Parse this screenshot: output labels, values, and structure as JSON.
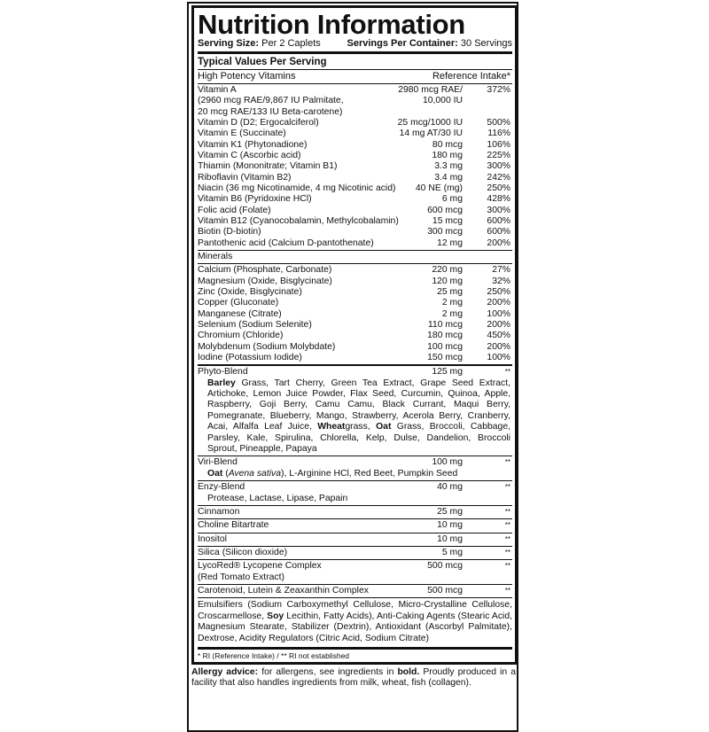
{
  "title": "Nutrition Information",
  "serving": {
    "size_label": "Serving Size:",
    "size_value": "Per 2 Caplets",
    "per_container_label": "Servings Per Container:",
    "per_container_value": "30 Servings"
  },
  "typical_values": "Typical Values Per Serving",
  "vitamins_header": {
    "label": "High Potency Vitamins",
    "ri": "Reference Intake*"
  },
  "vitamins": [
    {
      "name": "Vitamin A",
      "amount": "2980 mcg RAE/",
      "ri": "372%"
    },
    {
      "name": "(2960 mcg RAE/9,867 IU Palmitate,",
      "amount": "10,000 IU",
      "ri": ""
    },
    {
      "name": "20 mcg RAE/133 IU Beta-carotene)",
      "amount": "",
      "ri": ""
    },
    {
      "name": "Vitamin D (D2; Ergocalciferol)",
      "amount": "25 mcg/1000 IU",
      "ri": "500%"
    },
    {
      "name": "Vitamin E (Succinate)",
      "amount": "14 mg AT/30 IU",
      "ri": "116%"
    },
    {
      "name": "Vitamin K1 (Phytonadione)",
      "amount": "80 mcg",
      "ri": "106%"
    },
    {
      "name": "Vitamin C (Ascorbic acid)",
      "amount": "180 mg",
      "ri": "225%"
    },
    {
      "name": "Thiamin (Mononitrate; Vitamin B1)",
      "amount": "3.3 mg",
      "ri": "300%"
    },
    {
      "name": "Riboflavin (Vitamin B2)",
      "amount": "3.4 mg",
      "ri": "242%"
    },
    {
      "name": "Niacin (36 mg Nicotinamide, 4 mg Nicotinic acid)",
      "amount": "40 NE (mg)",
      "ri": "250%"
    },
    {
      "name": "Vitamin B6 (Pyridoxine HCl)",
      "amount": "6 mg",
      "ri": "428%"
    },
    {
      "name": "Folic acid (Folate)",
      "amount": "600 mcg",
      "ri": "300%"
    },
    {
      "name": "Vitamin B12 (Cyanocobalamin, Methylcobalamin)",
      "amount": "15 mcg",
      "ri": "600%"
    },
    {
      "name": "Biotin (D-biotin)",
      "amount": "300 mcg",
      "ri": "600%"
    },
    {
      "name": "Pantothenic acid (Calcium D-pantothenate)",
      "amount": "12 mg",
      "ri": "200%"
    }
  ],
  "minerals_header": "Minerals",
  "minerals": [
    {
      "name": "Calcium (Phosphate, Carbonate)",
      "amount": "220 mg",
      "ri": "27%"
    },
    {
      "name": "Magnesium (Oxide, Bisglycinate)",
      "amount": "120 mg",
      "ri": "32%"
    },
    {
      "name": "Zinc (Oxide, Bisglycinate)",
      "amount": "25 mg",
      "ri": "250%"
    },
    {
      "name": "Copper (Gluconate)",
      "amount": "2 mg",
      "ri": "200%"
    },
    {
      "name": "Manganese (Citrate)",
      "amount": "2 mg",
      "ri": "100%"
    },
    {
      "name": "Selenium (Sodium Selenite)",
      "amount": "110 mcg",
      "ri": "200%"
    },
    {
      "name": "Chromium (Chloride)",
      "amount": "180 mcg",
      "ri": "450%"
    },
    {
      "name": "Molybdenum (Sodium Molybdate)",
      "amount": "100 mcg",
      "ri": "200%"
    },
    {
      "name": "Iodine (Potassium Iodide)",
      "amount": "150 mcg",
      "ri": "100%"
    }
  ],
  "blends": [
    {
      "name": "Phyto-Blend",
      "amount": "125 mg",
      "ri": "**",
      "ingredients": [
        {
          "text": "Barley",
          "style": "b"
        },
        {
          "text": " Grass, Tart Cherry, Green Tea Extract, Grape Seed Extract, Artichoke, Lemon Juice Powder, Flax Seed, Curcumin, Quinoa, Apple, Raspberry, Goji Berry, Camu Camu, Black Currant, Maqui Berry, Pomegranate, Blueberry, Mango, Strawberry, Acerola Berry, Cranberry, Acai, Alfalfa Leaf Juice, ",
          "style": ""
        },
        {
          "text": "Wheat",
          "style": "b"
        },
        {
          "text": "grass, ",
          "style": ""
        },
        {
          "text": "Oat",
          "style": "b"
        },
        {
          "text": " Grass, Broccoli, Cabbage, Parsley, Kale, Spirulina, Chlorella, Kelp, Dulse, Dandelion, Broccoli Sprout, Pineapple, Papaya",
          "style": ""
        }
      ]
    },
    {
      "name": "Viri-Blend",
      "amount": "100 mg",
      "ri": "**",
      "ingredients": [
        {
          "text": "Oat",
          "style": "b"
        },
        {
          "text": " (",
          "style": ""
        },
        {
          "text": "Avena sativa",
          "style": "i"
        },
        {
          "text": "), L-Arginine HCl, Red Beet, Pumpkin Seed",
          "style": ""
        }
      ]
    },
    {
      "name": "Enzy-Blend",
      "amount": "40 mg",
      "ri": "**",
      "ingredients": [
        {
          "text": "Protease, Lactase, Lipase, Papain",
          "style": ""
        }
      ]
    }
  ],
  "others": [
    {
      "name": "Cinnamon",
      "amount": "25 mg",
      "ri": "**"
    },
    {
      "name": "Choline Bitartrate",
      "amount": "10 mg",
      "ri": "**"
    },
    {
      "name": "Inositol",
      "amount": "10 mg",
      "ri": "**"
    },
    {
      "name": "Silica (Silicon dioxide)",
      "amount": "5 mg",
      "ri": "**"
    },
    {
      "name": "LycoRed® Lycopene Complex",
      "name2": "(Red Tomato Extract)",
      "amount": "500 mcg",
      "ri": "**"
    },
    {
      "name": "Carotenoid, Lutein & Zeaxanthin Complex",
      "amount": "500 mcg",
      "ri": "**"
    }
  ],
  "excipients": [
    {
      "text": "Emulsifiers (Sodium Carboxymethyl Cellulose, Micro-Crystalline Cellulose, Croscarmellose, ",
      "style": ""
    },
    {
      "text": "Soy",
      "style": "b"
    },
    {
      "text": " Lecithin, Fatty Acids), Anti-Caking Agents (Stearic Acid, Magnesium Stearate, Stabilizer (Dextrin), Antioxidant (Ascorbyl Palmitate), Dextrose, Acidity Regulators (Citric Acid, Sodium Citrate)",
      "style": ""
    }
  ],
  "footnote": "* RI (Reference Intake) / ** RI not established",
  "allergy": [
    {
      "text": "Allergy advice:",
      "style": "b"
    },
    {
      "text": " for allergens, see ingredients in ",
      "style": ""
    },
    {
      "text": "bold.",
      "style": "b"
    },
    {
      "text": " Proudly produced in a facility that also handles ingredients from milk, wheat, fish (collagen).",
      "style": ""
    }
  ]
}
